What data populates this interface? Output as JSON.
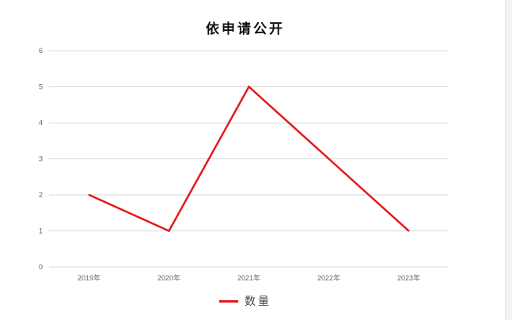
{
  "chart_data": {
    "type": "line",
    "title": "依申请公开",
    "categories": [
      "2019年",
      "2020年",
      "2021年",
      "2022年",
      "2023年"
    ],
    "series": [
      {
        "name": "数量",
        "values": [
          2,
          1,
          5,
          3,
          1
        ],
        "color": "#e31a1c"
      }
    ],
    "ylim": [
      0,
      6
    ],
    "yticks": [
      0,
      1,
      2,
      3,
      4,
      5,
      6
    ],
    "grid": true,
    "legend": "bottom"
  }
}
